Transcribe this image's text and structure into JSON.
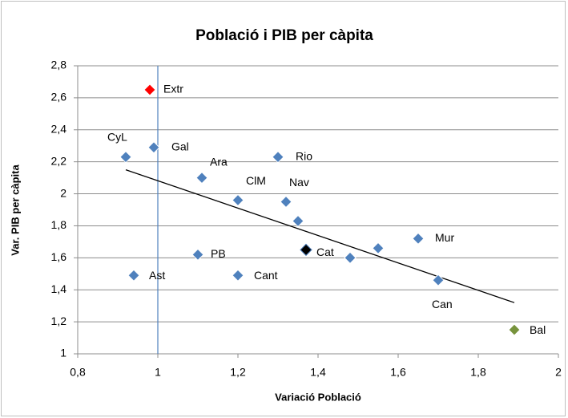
{
  "chart_data": {
    "type": "scatter",
    "title": "Població i PIB per càpita",
    "x_label": "Variació Població",
    "y_label": "Var. PIB per càpita",
    "labels": [
      "Extr",
      "CyL",
      "Gal",
      "Ara",
      "Rio",
      "ClM",
      "Nav",
      null,
      "Cat",
      null,
      null,
      "Mur",
      "Can",
      "Bal",
      "PB",
      "Cant",
      "Ast"
    ],
    "x": [
      0.98,
      0.92,
      0.99,
      1.11,
      1.3,
      1.2,
      1.32,
      1.35,
      1.37,
      1.48,
      1.55,
      1.65,
      1.7,
      1.89,
      1.1,
      1.2,
      0.94
    ],
    "y": [
      2.65,
      2.23,
      2.29,
      2.1,
      2.23,
      1.96,
      1.95,
      1.83,
      1.65,
      1.6,
      1.66,
      1.72,
      1.46,
      1.15,
      1.62,
      1.49,
      1.49
    ],
    "colors": [
      "#ff0000",
      "#4f81bd",
      "#4f81bd",
      "#4f81bd",
      "#4f81bd",
      "#4f81bd",
      "#4f81bd",
      "#4f81bd",
      "#000000",
      "#4f81bd",
      "#4f81bd",
      "#4f81bd",
      "#4f81bd",
      "#77933c",
      "#4f81bd",
      "#4f81bd",
      "#4f81bd"
    ],
    "trendline": {
      "x": [
        0.92,
        1.89
      ],
      "y": [
        2.15,
        1.32
      ],
      "color": "#000000"
    },
    "vline": {
      "x": 1,
      "color": "#4f81bd"
    },
    "xlim": [
      0.8,
      2
    ],
    "ylim": [
      1,
      2.8
    ],
    "xticks": [
      {
        "value": 0.8,
        "label": "0,8"
      },
      1,
      {
        "value": 1.2,
        "label": "1,2"
      },
      {
        "value": 1.4,
        "label": "1,4"
      },
      {
        "value": 1.6,
        "label": "1,6"
      },
      {
        "value": 1.8,
        "label": "1,8"
      },
      2
    ],
    "yticks": [
      1,
      {
        "value": 1.2,
        "label": "1,2"
      },
      {
        "value": 1.4,
        "label": "1,4"
      },
      {
        "value": 1.6,
        "label": "1,6"
      },
      {
        "value": 1.8,
        "label": "1,8"
      },
      2,
      {
        "value": 2.2,
        "label": "2,2"
      },
      {
        "value": 2.4,
        "label": "2,4"
      },
      {
        "value": 2.6,
        "label": "2,6"
      },
      {
        "value": 2.8,
        "label": "2,8"
      }
    ],
    "grid": true
  }
}
